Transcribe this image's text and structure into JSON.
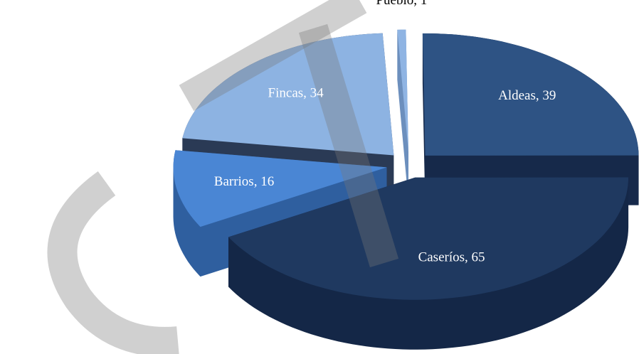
{
  "chart_data": {
    "type": "pie3d",
    "categories": [
      "Pueblo",
      "Aldeas",
      "Caseríos",
      "Barrios",
      "Fincas"
    ],
    "values": [
      1,
      39,
      65,
      16,
      34
    ],
    "value_labels": [
      "Pueblo, 1",
      "Aldeas, 39",
      "Caseríos, 65",
      "Barrios, 16",
      "Fincas, 34"
    ],
    "colors": [
      "#8fb4e3",
      "#2e5384",
      "#1f3960",
      "#4a86d4",
      "#8db3e2"
    ],
    "side_colors": [
      "#6c8fbd",
      "#16294a",
      "#142747",
      "#2f5f9f",
      "#2a3a55"
    ]
  }
}
